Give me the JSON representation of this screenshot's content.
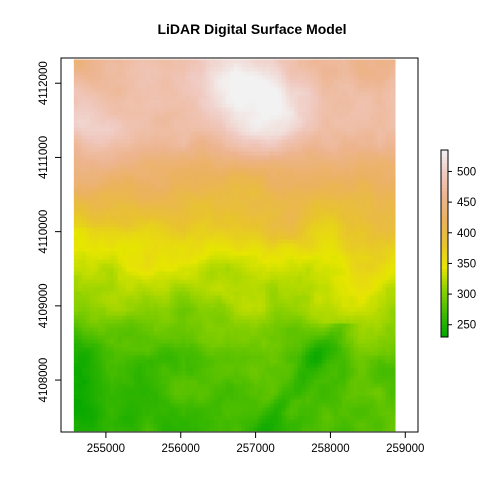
{
  "chart_data": {
    "type": "heatmap",
    "title": "LiDAR Digital Surface Model",
    "xlabel": "",
    "ylabel": "",
    "x_ticks": [
      255000,
      256000,
      257000,
      258000,
      259000
    ],
    "y_ticks": [
      4108000,
      4109000,
      4110000,
      4111000,
      4112000
    ],
    "x_extent": [
      254570,
      258870
    ],
    "y_extent": [
      4107310,
      4112320
    ],
    "xlim": [
      254400,
      259170
    ],
    "ylim": [
      4107300,
      4112340
    ],
    "legend": {
      "position": "right",
      "ticks": [
        250,
        300,
        350,
        400,
        450,
        500
      ],
      "range": [
        230,
        535
      ],
      "colors": [
        "#00A600",
        "#3FBA00",
        "#8BD000",
        "#E6E600",
        "#E8C32E",
        "#EBB25E",
        "#EDB48E",
        "#F0C9C0",
        "#F2F2F2"
      ]
    },
    "grid": false,
    "surface_description_values": {
      "north_plateau_elevation": 470,
      "south_valley_elevation": 260
    }
  }
}
